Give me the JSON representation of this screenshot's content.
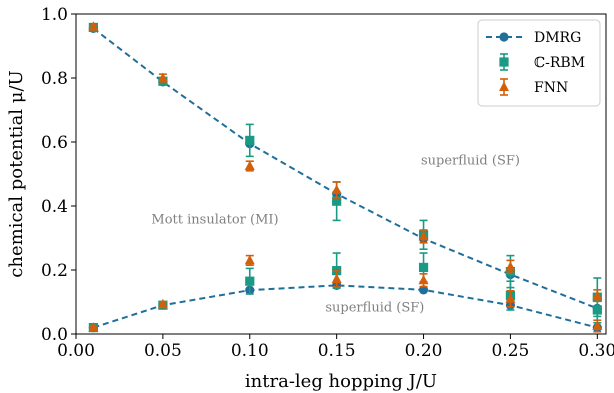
{
  "chart_data": {
    "type": "line",
    "xlabel": "intra-leg hopping J/U",
    "ylabel": "chemical potential μ/U",
    "xlim": [
      0.0,
      0.305
    ],
    "ylim": [
      0.0,
      1.0
    ],
    "x_ticks": [
      "0.00",
      "0.05",
      "0.10",
      "0.15",
      "0.20",
      "0.25",
      "0.30"
    ],
    "y_ticks": [
      "0.0",
      "0.2",
      "0.4",
      "0.6",
      "0.8",
      "1.0"
    ],
    "grid": false,
    "legend_position": "top-right",
    "annotations": [
      {
        "text": "Mott insulator (MI)",
        "x": 0.08,
        "y": 0.345
      },
      {
        "text": "superfluid (SF)",
        "x": 0.227,
        "y": 0.53
      },
      {
        "text": "superfluid (SF)",
        "x": 0.172,
        "y": 0.07
      }
    ],
    "series": [
      {
        "name": "DMRG",
        "color": "#1f6f9a",
        "marker": "circle",
        "linestyle": "dashed",
        "branches": [
          {
            "x": [
              0.01,
              0.05,
              0.1,
              0.15,
              0.2,
              0.25,
              0.3
            ],
            "y": [
              0.955,
              0.788,
              0.595,
              0.438,
              0.298,
              0.186,
              0.08
            ]
          },
          {
            "x": [
              0.01,
              0.05,
              0.1,
              0.15,
              0.2,
              0.25,
              0.3
            ],
            "y": [
              0.02,
              0.09,
              0.137,
              0.152,
              0.138,
              0.09,
              0.02
            ]
          }
        ]
      },
      {
        "name": "ℂ-RBM",
        "color": "#1a9a84",
        "marker": "square",
        "linestyle": "none",
        "branches": [
          {
            "x": [
              0.01,
              0.05,
              0.1,
              0.15,
              0.2,
              0.25,
              0.3
            ],
            "y": [
              0.958,
              0.79,
              0.605,
              0.415,
              0.31,
              0.195,
              0.115
            ],
            "err": [
              0.005,
              0.008,
              0.05,
              0.06,
              0.045,
              0.05,
              0.06
            ]
          },
          {
            "x": [
              0.01,
              0.05,
              0.1,
              0.15,
              0.2,
              0.25,
              0.3
            ],
            "y": [
              0.02,
              0.09,
              0.165,
              0.198,
              0.208,
              0.12,
              0.075
            ],
            "err": [
              0.005,
              0.008,
              0.04,
              0.055,
              0.045,
              0.045,
              0.04
            ]
          }
        ]
      },
      {
        "name": "FNN",
        "color": "#d35f0a",
        "marker": "triangle",
        "linestyle": "none",
        "branches": [
          {
            "x": [
              0.01,
              0.05,
              0.1,
              0.15,
              0.2,
              0.25,
              0.3
            ],
            "y": [
              0.96,
              0.8,
              0.525,
              0.45,
              0.305,
              0.21,
              0.12
            ],
            "err": [
              0.005,
              0.012,
              0.015,
              0.025,
              0.02,
              0.02,
              0.018
            ]
          },
          {
            "x": [
              0.01,
              0.05,
              0.1,
              0.15,
              0.2,
              0.25,
              0.3
            ],
            "y": [
              0.02,
              0.093,
              0.23,
              0.172,
              0.168,
              0.11,
              0.025
            ],
            "err": [
              0.005,
              0.008,
              0.015,
              0.025,
              0.02,
              0.025,
              0.018
            ]
          }
        ]
      }
    ]
  }
}
